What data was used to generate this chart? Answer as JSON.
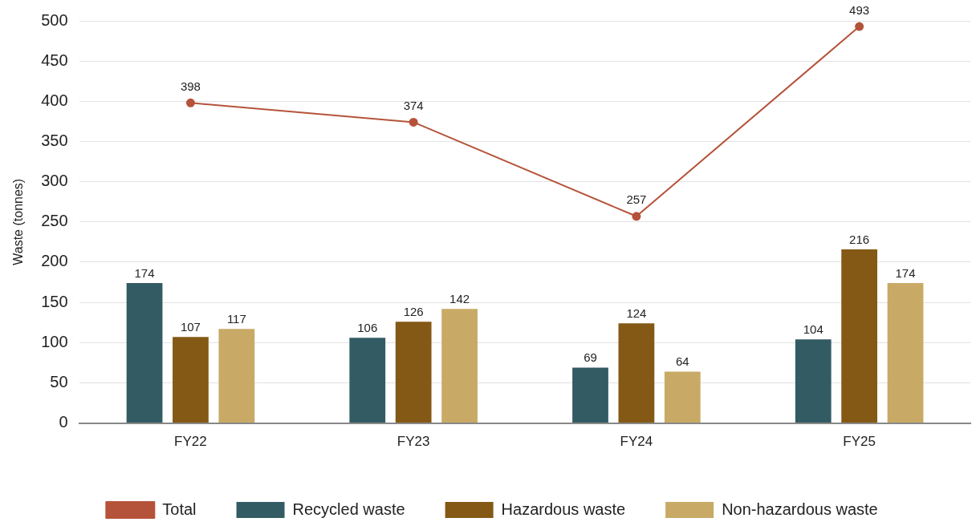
{
  "chart_data": {
    "type": "bar",
    "ylabel": "Waste (tonnes)",
    "categories": [
      "FY22",
      "FY23",
      "FY24",
      "FY25"
    ],
    "series": [
      {
        "name": "Recycled waste",
        "color": "#335b63",
        "values": [
          174,
          106,
          69,
          104
        ]
      },
      {
        "name": "Hazardous waste",
        "color": "#845915",
        "values": [
          107,
          126,
          124,
          216
        ]
      },
      {
        "name": "Non-hazardous waste",
        "color": "#c8aa66",
        "values": [
          117,
          142,
          64,
          174
        ]
      },
      {
        "name": "Total",
        "type": "line",
        "color": "#b5533a",
        "values": [
          398,
          374,
          257,
          493
        ]
      }
    ],
    "ylim": [
      0,
      500
    ],
    "yticks": [
      0,
      50,
      100,
      150,
      200,
      250,
      300,
      350,
      400,
      450,
      500
    ],
    "grid": "y",
    "legend": "bottom",
    "marker": "circle",
    "line_style": "solid",
    "data_labels": true
  }
}
